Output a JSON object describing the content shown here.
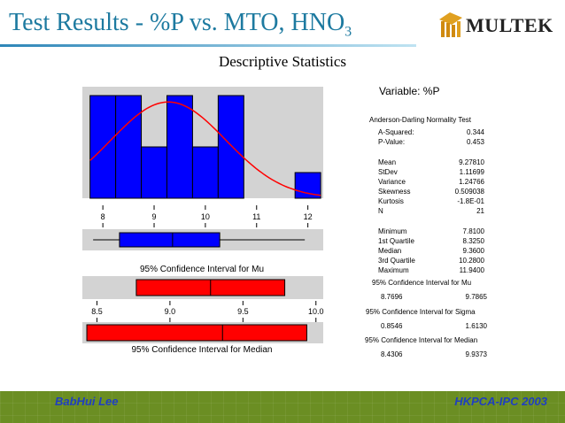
{
  "slide": {
    "title_main": "Test Results - %P vs. MTO, HNO",
    "title_sub": "3",
    "logo_text": "MULTEK",
    "subtitle": "Descriptive Statistics",
    "footer_left": "BabHui Lee",
    "footer_right": "HKPCA-IPC 2003"
  },
  "stats": {
    "variable": "Variable: %P",
    "normality_title": "Anderson-Darling Normality Test",
    "a_squared_label": "A-Squared:",
    "a_squared": "0.344",
    "p_value_label": "P-Value:",
    "p_value": "0.453",
    "mean_label": "Mean",
    "mean": "9.27810",
    "stdev_label": "StDev",
    "stdev": "1.11699",
    "variance_label": "Variance",
    "variance": "1.24766",
    "skewness_label": "Skewness",
    "skewness": "0.509038",
    "kurtosis_label": "Kurtosis",
    "kurtosis": "-1.8E-01",
    "n_label": "N",
    "n": "21",
    "minimum_label": "Minimum",
    "minimum": "7.8100",
    "q1_label": "1st Quartile",
    "q1": "8.3250",
    "median_label": "Median",
    "median": "9.3600",
    "q3_label": "3rd Quartile",
    "q3": "10.2800",
    "maximum_label": "Maximum",
    "maximum": "11.9400",
    "ci_mu_label": "95% Confidence Interval for Mu",
    "ci_mu_lo": "8.7696",
    "ci_mu_hi": "9.7865",
    "ci_sigma_label": "95% Confidence Interval for Sigma",
    "ci_sigma_lo": "0.8546",
    "ci_sigma_hi": "1.6130",
    "ci_median_label": "95% Confidence Interval for Median",
    "ci_median_lo": "8.4306",
    "ci_median_hi": "9.9373"
  },
  "colors": {
    "bar_fill": "#0000ff",
    "curve": "#ff0000",
    "ci_fill": "#ff0000",
    "panel_bg": "#d3d3d3",
    "title": "#1d7aa0",
    "footer_bg": "#6b8e23",
    "footer_text": "#1f3fbf"
  },
  "chart_data": [
    {
      "type": "bar",
      "subtype": "histogram",
      "bin_edges": [
        7.75,
        8.25,
        8.75,
        9.25,
        9.75,
        10.25,
        10.75,
        11.25,
        11.75,
        12.25
      ],
      "values": [
        4,
        4,
        2,
        4,
        2,
        4,
        0,
        0,
        1
      ],
      "ylim": [
        0,
        4
      ],
      "fit_curve": {
        "type": "normal",
        "mean": 9.2781,
        "stdev": 1.11699
      },
      "xlim": [
        7.6,
        12.3
      ],
      "xticks": [
        8,
        9,
        10,
        11,
        12
      ],
      "xtick_labels": [
        "8",
        "9",
        "10",
        "11",
        "12"
      ]
    },
    {
      "type": "boxplot",
      "whisker_low": 7.81,
      "q1": 8.325,
      "median": 9.36,
      "q3": 10.28,
      "whisker_high": 11.94,
      "xlim": [
        7.6,
        12.3
      ]
    },
    {
      "type": "interval",
      "title": "95% Confidence Interval for Mu",
      "low": 8.7696,
      "center": 9.2781,
      "high": 9.7865,
      "xlim": [
        8.4,
        10.05
      ],
      "xticks": [
        8.5,
        9.0,
        9.5,
        10.0
      ],
      "xtick_labels": [
        "8.5",
        "9.0",
        "9.5",
        "10.0"
      ]
    },
    {
      "type": "interval",
      "title": "95% Confidence Interval for Median",
      "low": 8.4306,
      "center": 9.36,
      "high": 9.9373,
      "xlim": [
        8.4,
        10.05
      ]
    }
  ]
}
